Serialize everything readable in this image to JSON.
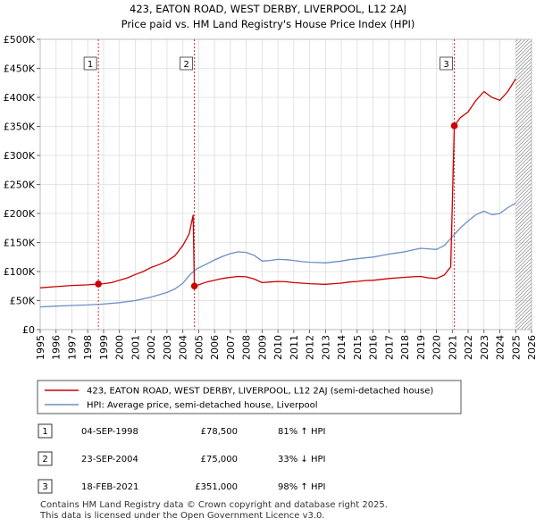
{
  "chart_data": {
    "type": "line",
    "title": "423, EATON ROAD, WEST DERBY, LIVERPOOL, L12 2AJ",
    "subtitle": "Price paid vs. HM Land Registry's House Price Index (HPI)",
    "xlim": [
      1995,
      2026
    ],
    "ylim": [
      0,
      500000
    ],
    "x_ticks": [
      "1995",
      "1996",
      "1997",
      "1998",
      "1999",
      "2000",
      "2001",
      "2002",
      "2003",
      "2004",
      "2005",
      "2006",
      "2007",
      "2008",
      "2009",
      "2010",
      "2011",
      "2012",
      "2013",
      "2014",
      "2015",
      "2016",
      "2017",
      "2018",
      "2019",
      "2020",
      "2021",
      "2022",
      "2023",
      "2024",
      "2025",
      "2026"
    ],
    "y_ticks": [
      {
        "value": 0,
        "label": "£0"
      },
      {
        "value": 50000,
        "label": "£50K"
      },
      {
        "value": 100000,
        "label": "£100K"
      },
      {
        "value": 150000,
        "label": "£150K"
      },
      {
        "value": 200000,
        "label": "£200K"
      },
      {
        "value": 250000,
        "label": "£250K"
      },
      {
        "value": 300000,
        "label": "£300K"
      },
      {
        "value": 350000,
        "label": "£350K"
      },
      {
        "value": 400000,
        "label": "£400K"
      },
      {
        "value": 450000,
        "label": "£450K"
      },
      {
        "value": 500000,
        "label": "£500K"
      }
    ],
    "future_hatch_from": 2025.0,
    "series": [
      {
        "name": "423, EATON ROAD, WEST DERBY, LIVERPOOL, L12 2AJ (semi-detached house)",
        "color": "#cc0000",
        "points": [
          [
            1995.0,
            72000
          ],
          [
            1996.0,
            74000
          ],
          [
            1997.0,
            76000
          ],
          [
            1998.0,
            77000
          ],
          [
            1998.67,
            78500
          ],
          [
            1999.0,
            79000
          ],
          [
            1999.5,
            81000
          ],
          [
            2000.0,
            85000
          ],
          [
            2000.5,
            89000
          ],
          [
            2001.0,
            95000
          ],
          [
            2001.5,
            100000
          ],
          [
            2002.0,
            107000
          ],
          [
            2002.5,
            112000
          ],
          [
            2003.0,
            118000
          ],
          [
            2003.5,
            127000
          ],
          [
            2004.0,
            145000
          ],
          [
            2004.4,
            165000
          ],
          [
            2004.65,
            197000
          ],
          [
            2004.73,
            75000
          ],
          [
            2005.0,
            77000
          ],
          [
            2005.5,
            82000
          ],
          [
            2006.0,
            85000
          ],
          [
            2006.5,
            88000
          ],
          [
            2007.0,
            90000
          ],
          [
            2007.5,
            91500
          ],
          [
            2008.0,
            91000
          ],
          [
            2008.5,
            87000
          ],
          [
            2009.0,
            81000
          ],
          [
            2009.5,
            82000
          ],
          [
            2010.0,
            83000
          ],
          [
            2010.5,
            82500
          ],
          [
            2011.0,
            81000
          ],
          [
            2011.5,
            80000
          ],
          [
            2012.0,
            79000
          ],
          [
            2012.5,
            78500
          ],
          [
            2013.0,
            78000
          ],
          [
            2013.5,
            79000
          ],
          [
            2014.0,
            80000
          ],
          [
            2014.5,
            82000
          ],
          [
            2015.0,
            83000
          ],
          [
            2015.5,
            84500
          ],
          [
            2016.0,
            85000
          ],
          [
            2016.5,
            86500
          ],
          [
            2017.0,
            88000
          ],
          [
            2017.5,
            89000
          ],
          [
            2018.0,
            90000
          ],
          [
            2018.5,
            91000
          ],
          [
            2019.0,
            91500
          ],
          [
            2019.5,
            89000
          ],
          [
            2020.0,
            88000
          ],
          [
            2020.5,
            94000
          ],
          [
            2020.9,
            108000
          ],
          [
            2021.13,
            351000
          ],
          [
            2021.5,
            365000
          ],
          [
            2022.0,
            375000
          ],
          [
            2022.5,
            395000
          ],
          [
            2023.0,
            410000
          ],
          [
            2023.5,
            400000
          ],
          [
            2024.0,
            395000
          ],
          [
            2024.5,
            410000
          ],
          [
            2025.0,
            432000
          ]
        ]
      },
      {
        "name": "HPI: Average price, semi-detached house, Liverpool",
        "color": "#6a8fc0",
        "points": [
          [
            1995.0,
            39000
          ],
          [
            1996.0,
            40500
          ],
          [
            1997.0,
            41500
          ],
          [
            1998.0,
            42500
          ],
          [
            1999.0,
            44000
          ],
          [
            2000.0,
            46500
          ],
          [
            2001.0,
            50000
          ],
          [
            2002.0,
            56000
          ],
          [
            2003.0,
            64000
          ],
          [
            2003.5,
            70000
          ],
          [
            2004.0,
            80000
          ],
          [
            2004.5,
            96000
          ],
          [
            2004.9,
            105000
          ],
          [
            2005.5,
            113000
          ],
          [
            2006.0,
            120000
          ],
          [
            2006.5,
            126000
          ],
          [
            2007.0,
            131000
          ],
          [
            2007.5,
            134000
          ],
          [
            2008.0,
            133000
          ],
          [
            2008.5,
            128000
          ],
          [
            2009.0,
            118000
          ],
          [
            2009.5,
            119000
          ],
          [
            2010.0,
            121000
          ],
          [
            2010.5,
            120500
          ],
          [
            2011.0,
            119000
          ],
          [
            2011.5,
            117000
          ],
          [
            2012.0,
            116000
          ],
          [
            2012.5,
            115500
          ],
          [
            2013.0,
            115000
          ],
          [
            2013.5,
            116500
          ],
          [
            2014.0,
            118000
          ],
          [
            2014.5,
            120500
          ],
          [
            2015.0,
            122000
          ],
          [
            2015.5,
            123500
          ],
          [
            2016.0,
            125000
          ],
          [
            2016.5,
            127500
          ],
          [
            2017.0,
            130000
          ],
          [
            2017.5,
            132000
          ],
          [
            2018.0,
            134000
          ],
          [
            2018.5,
            137000
          ],
          [
            2019.0,
            140000
          ],
          [
            2019.5,
            139000
          ],
          [
            2020.0,
            138000
          ],
          [
            2020.5,
            145000
          ],
          [
            2021.0,
            160000
          ],
          [
            2021.5,
            175000
          ],
          [
            2022.0,
            187000
          ],
          [
            2022.5,
            198000
          ],
          [
            2023.0,
            204000
          ],
          [
            2023.5,
            198000
          ],
          [
            2024.0,
            200000
          ],
          [
            2024.5,
            210000
          ],
          [
            2025.0,
            218000
          ]
        ]
      }
    ],
    "sales": [
      {
        "num": "1",
        "x": 1998.67,
        "price": 78500
      },
      {
        "num": "2",
        "x": 2004.73,
        "price": 75000
      },
      {
        "num": "3",
        "x": 2021.13,
        "price": 351000
      }
    ]
  },
  "legend": {
    "items": [
      {
        "label": "423, EATON ROAD, WEST DERBY, LIVERPOOL, L12 2AJ (semi-detached house)",
        "color": "#cc0000"
      },
      {
        "label": "HPI: Average price, semi-detached house, Liverpool",
        "color": "#6a8fc0"
      }
    ]
  },
  "transactions": [
    {
      "num": "1",
      "date": "04-SEP-1998",
      "price": "£78,500",
      "hpi": "81% ↑ HPI"
    },
    {
      "num": "2",
      "date": "23-SEP-2004",
      "price": "£75,000",
      "hpi": "33% ↓ HPI"
    },
    {
      "num": "3",
      "date": "18-FEB-2021",
      "price": "£351,000",
      "hpi": "98% ↑ HPI"
    }
  ],
  "footer": {
    "line1": "Contains HM Land Registry data © Crown copyright and database right 2025.",
    "line2": "This data is licensed under the Open Government Licence v3.0."
  },
  "colors": {
    "accent": "#cc0000",
    "hpi": "#6a8fc0",
    "grid": "#dddddd"
  }
}
